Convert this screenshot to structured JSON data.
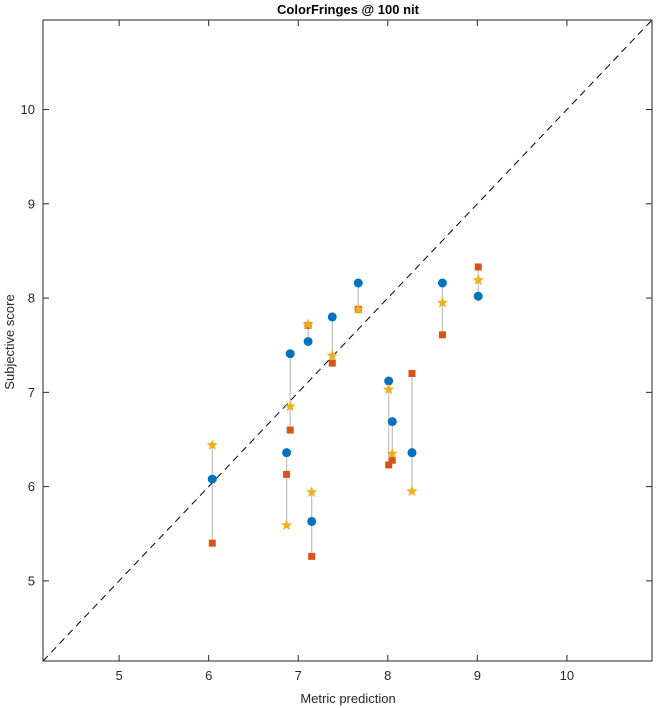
{
  "chart_data": {
    "type": "scatter",
    "title": "ColorFringes @ 100 nit",
    "xlabel": "Metric prediction",
    "ylabel": "Subjective score",
    "xlim": [
      4.15,
      10.95
    ],
    "ylim": [
      4.15,
      10.95
    ],
    "xticks": [
      5,
      6,
      7,
      8,
      9,
      10
    ],
    "yticks": [
      5,
      6,
      7,
      8,
      9,
      10
    ],
    "grid": false,
    "diagonal": "y = x (dashed)",
    "series": [
      {
        "marker": "circle",
        "color": "#0072BD",
        "points": [
          [
            6.04,
            6.08
          ],
          [
            6.87,
            6.36
          ],
          [
            6.91,
            7.41
          ],
          [
            7.11,
            7.54
          ],
          [
            7.15,
            5.63
          ],
          [
            7.38,
            7.8
          ],
          [
            7.67,
            8.16
          ],
          [
            8.01,
            7.12
          ],
          [
            8.05,
            6.69
          ],
          [
            8.27,
            6.36
          ],
          [
            8.61,
            8.16
          ],
          [
            9.01,
            8.02
          ]
        ]
      },
      {
        "marker": "square",
        "color": "#D95319",
        "points": [
          [
            6.04,
            5.4
          ],
          [
            6.87,
            6.13
          ],
          [
            6.91,
            6.6
          ],
          [
            7.11,
            7.71
          ],
          [
            7.15,
            5.26
          ],
          [
            7.38,
            7.31
          ],
          [
            7.67,
            7.88
          ],
          [
            8.01,
            6.23
          ],
          [
            8.05,
            6.28
          ],
          [
            8.27,
            7.2
          ],
          [
            8.61,
            7.61
          ],
          [
            9.01,
            8.33
          ]
        ]
      },
      {
        "marker": "star",
        "color": "#EDB120",
        "points": [
          [
            6.04,
            6.44
          ],
          [
            6.87,
            5.59
          ],
          [
            6.91,
            6.85
          ],
          [
            7.11,
            7.72
          ],
          [
            7.15,
            5.94
          ],
          [
            7.38,
            7.39
          ],
          [
            7.67,
            7.88
          ],
          [
            8.01,
            7.03
          ],
          [
            8.05,
            6.35
          ],
          [
            8.27,
            5.95
          ],
          [
            8.61,
            7.95
          ],
          [
            9.01,
            8.19
          ]
        ]
      }
    ],
    "connector_color": "#bdbdbd"
  }
}
